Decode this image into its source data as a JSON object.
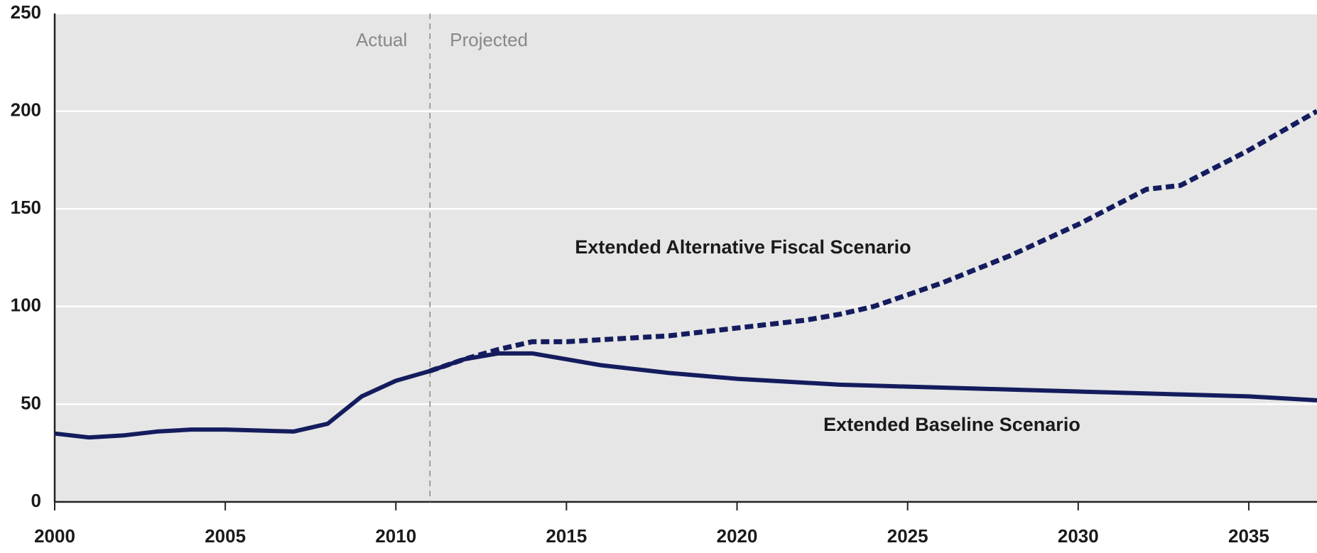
{
  "chart_data": {
    "type": "line",
    "x": [
      2000,
      2001,
      2002,
      2003,
      2004,
      2005,
      2006,
      2007,
      2008,
      2009,
      2010,
      2011,
      2012,
      2013,
      2014,
      2015,
      2016,
      2017,
      2018,
      2019,
      2020,
      2021,
      2022,
      2023,
      2024,
      2025,
      2026,
      2027,
      2028,
      2029,
      2030,
      2031,
      2032,
      2033,
      2034,
      2035,
      2036,
      2037
    ],
    "series": [
      {
        "name": "Extended Baseline Scenario",
        "color": "#141c5e",
        "style": "solid",
        "values": [
          35,
          33,
          34,
          36,
          37,
          37,
          36.5,
          36,
          40,
          54,
          62,
          67,
          73,
          76,
          76,
          73,
          70,
          68,
          66,
          64.5,
          63,
          62,
          61,
          60,
          59.5,
          59,
          58.5,
          58,
          57.5,
          57,
          56.5,
          56,
          55.5,
          55,
          54.5,
          54,
          53,
          52
        ]
      },
      {
        "name": "Extended Alternative Fiscal Scenario",
        "color": "#141c5e",
        "style": "dashed",
        "values": [
          null,
          null,
          null,
          null,
          null,
          null,
          null,
          null,
          null,
          null,
          null,
          67,
          73,
          78,
          82,
          82,
          83,
          84,
          85,
          87,
          89,
          91,
          93,
          96,
          100,
          106,
          112,
          119,
          126,
          134,
          142,
          151,
          160,
          162,
          171,
          180,
          190,
          200
        ]
      }
    ],
    "xlim": [
      2000,
      2037
    ],
    "xticks": [
      2000,
      2005,
      2010,
      2015,
      2020,
      2025,
      2030,
      2035
    ],
    "ylim": [
      0,
      250
    ],
    "yticks": [
      0,
      50,
      100,
      150,
      200,
      250
    ],
    "grid": true,
    "divider": {
      "x": 2011,
      "left_label": "Actual",
      "right_label": "Projected"
    }
  }
}
